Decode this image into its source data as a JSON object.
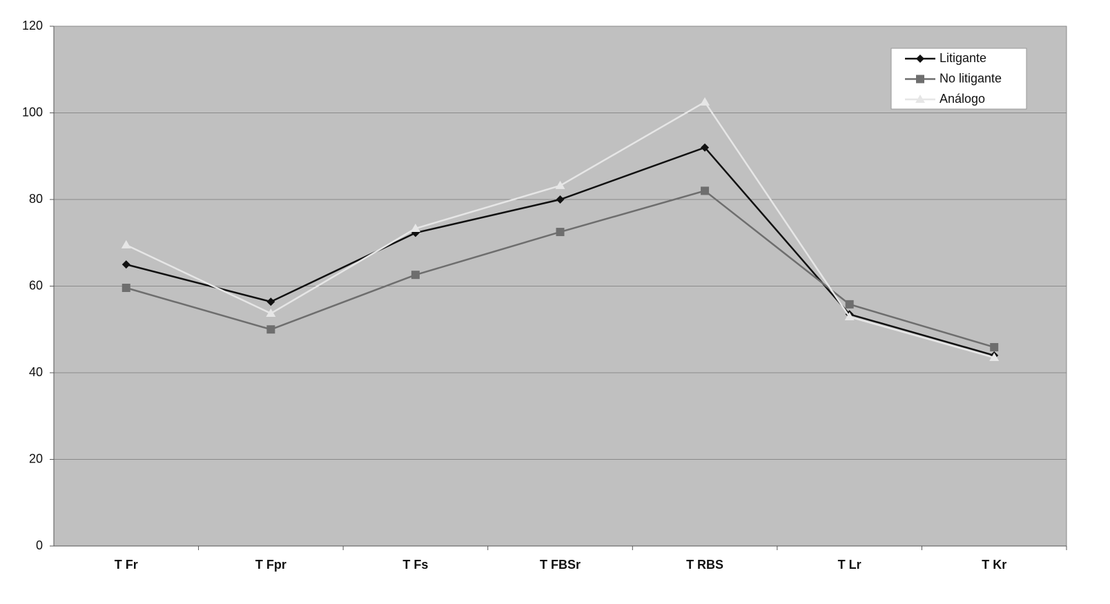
{
  "chart_data": {
    "type": "line",
    "categories": [
      "T Fr",
      "T Fpr",
      "T Fs",
      "T FBSr",
      "T RBS",
      "T Lr",
      "T Kr"
    ],
    "series": [
      {
        "name": "Litigante",
        "color": "#111111",
        "marker": "diamond",
        "values": [
          65,
          56.4,
          72.3,
          80,
          92,
          53.5,
          44
        ]
      },
      {
        "name": "No litigante",
        "color": "#6e6e6e",
        "marker": "square",
        "values": [
          59.6,
          50,
          62.6,
          72.5,
          82,
          55.8,
          45.9
        ]
      },
      {
        "name": "Análogo",
        "color": "#e6e6e6",
        "marker": "triangle",
        "values": [
          69.5,
          53.7,
          73.3,
          83.2,
          102.5,
          52.9,
          43.5
        ]
      }
    ],
    "ylim": [
      0,
      120
    ],
    "yticks": [
      0,
      20,
      40,
      60,
      80,
      100,
      120
    ],
    "grid": true,
    "plot_background": "#c0c0c0",
    "legend": "upper right"
  }
}
